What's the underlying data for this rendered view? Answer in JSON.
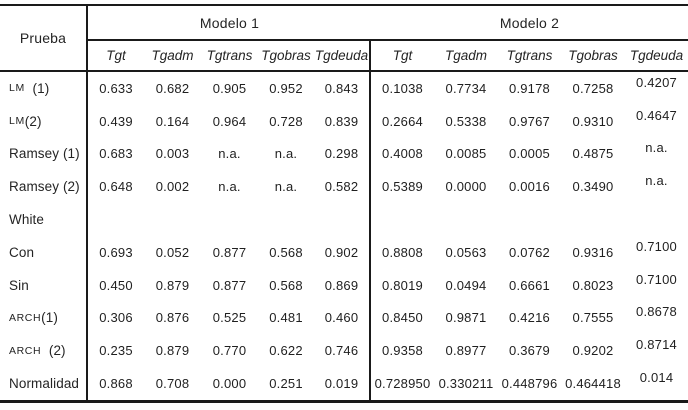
{
  "table": {
    "corner_header": "Prueba",
    "groups": [
      {
        "label": "Modelo 1",
        "columns": [
          "Tgt",
          "Tgadm",
          "Tgtrans",
          "Tgobras",
          "Tgdeuda"
        ]
      },
      {
        "label": "Modelo 2",
        "columns": [
          "Tgt",
          "Tgadm",
          "Tgtrans",
          "Tgobras",
          "Tgdeuda"
        ]
      }
    ],
    "na_text": "n.a.",
    "rows": [
      {
        "parts": [
          {
            "t": "LM",
            "sc": true
          },
          {
            "t": "  (1)",
            "sc": false
          }
        ],
        "m1": [
          "0.633",
          "0.682",
          "0.905",
          "0.952",
          "0.843"
        ],
        "m2": [
          "0.1038",
          "0.7734",
          "0.9178",
          "0.7258",
          "0.4207"
        ]
      },
      {
        "parts": [
          {
            "t": "LM",
            "sc": true
          },
          {
            "t": " (2)",
            "sc": false
          }
        ],
        "m1": [
          "0.439",
          "0.164",
          "0.964",
          "0.728",
          "0.839"
        ],
        "m2": [
          "0.2664",
          "0.5338",
          "0.9767",
          "0.9310",
          "0.4647"
        ]
      },
      {
        "parts": [
          {
            "t": "Ramsey (1)",
            "sc": false
          }
        ],
        "m1": [
          "0.683",
          "0.003",
          "n.a.",
          "n.a.",
          "0.298"
        ],
        "m2": [
          "0.4008",
          "0.0085",
          "0.0005",
          "0.4875",
          "n.a."
        ]
      },
      {
        "parts": [
          {
            "t": "Ramsey (2)",
            "sc": false
          }
        ],
        "m1": [
          "0.648",
          "0.002",
          "n.a.",
          "n.a.",
          "0.582"
        ],
        "m2": [
          "0.5389",
          "0.0000",
          "0.0016",
          "0.3490",
          "n.a."
        ]
      },
      {
        "parts": [
          {
            "t": "White",
            "sc": false
          }
        ],
        "m1": [
          "",
          "",
          "",
          "",
          ""
        ],
        "m2": [
          "",
          "",
          "",
          "",
          ""
        ]
      },
      {
        "parts": [
          {
            "t": "Con",
            "sc": false
          }
        ],
        "m1": [
          "0.693",
          "0.052",
          "0.877",
          "0.568",
          "0.902"
        ],
        "m2": [
          "0.8808",
          "0.0563",
          "0.0762",
          "0.9316",
          "0.7100"
        ]
      },
      {
        "parts": [
          {
            "t": "Sin",
            "sc": false
          }
        ],
        "m1": [
          "0.450",
          "0.879",
          "0.877",
          "0.568",
          "0.869"
        ],
        "m2": [
          "0.8019",
          "0.0494",
          "0.6661",
          "0.8023",
          "0.7100"
        ]
      },
      {
        "parts": [
          {
            "t": "ARCH",
            "sc": true
          },
          {
            "t": " (1)",
            "sc": false
          }
        ],
        "m1": [
          "0.306",
          "0.876",
          "0.525",
          "0.481",
          "0.460"
        ],
        "m2": [
          "0.8450",
          "0.9871",
          "0.4216",
          "0.7555",
          "0.8678"
        ]
      },
      {
        "parts": [
          {
            "t": "ARCH",
            "sc": true
          },
          {
            "t": "  (2)",
            "sc": false
          }
        ],
        "m1": [
          "0.235",
          "0.879",
          "0.770",
          "0.622",
          "0.746"
        ],
        "m2": [
          "0.9358",
          "0.8977",
          "0.3679",
          "0.9202",
          "0.8714"
        ]
      },
      {
        "parts": [
          {
            "t": "Normalidad",
            "sc": false
          }
        ],
        "m1": [
          "0.868",
          "0.708",
          "0.000",
          "0.251",
          "0.019"
        ],
        "m2": [
          "0.728950",
          "0.330211",
          "0.448796",
          "0.464418",
          "0.014"
        ]
      }
    ]
  },
  "colors": {
    "border": "#1a1a1a",
    "text": "#242424",
    "background": "#ffffff"
  }
}
